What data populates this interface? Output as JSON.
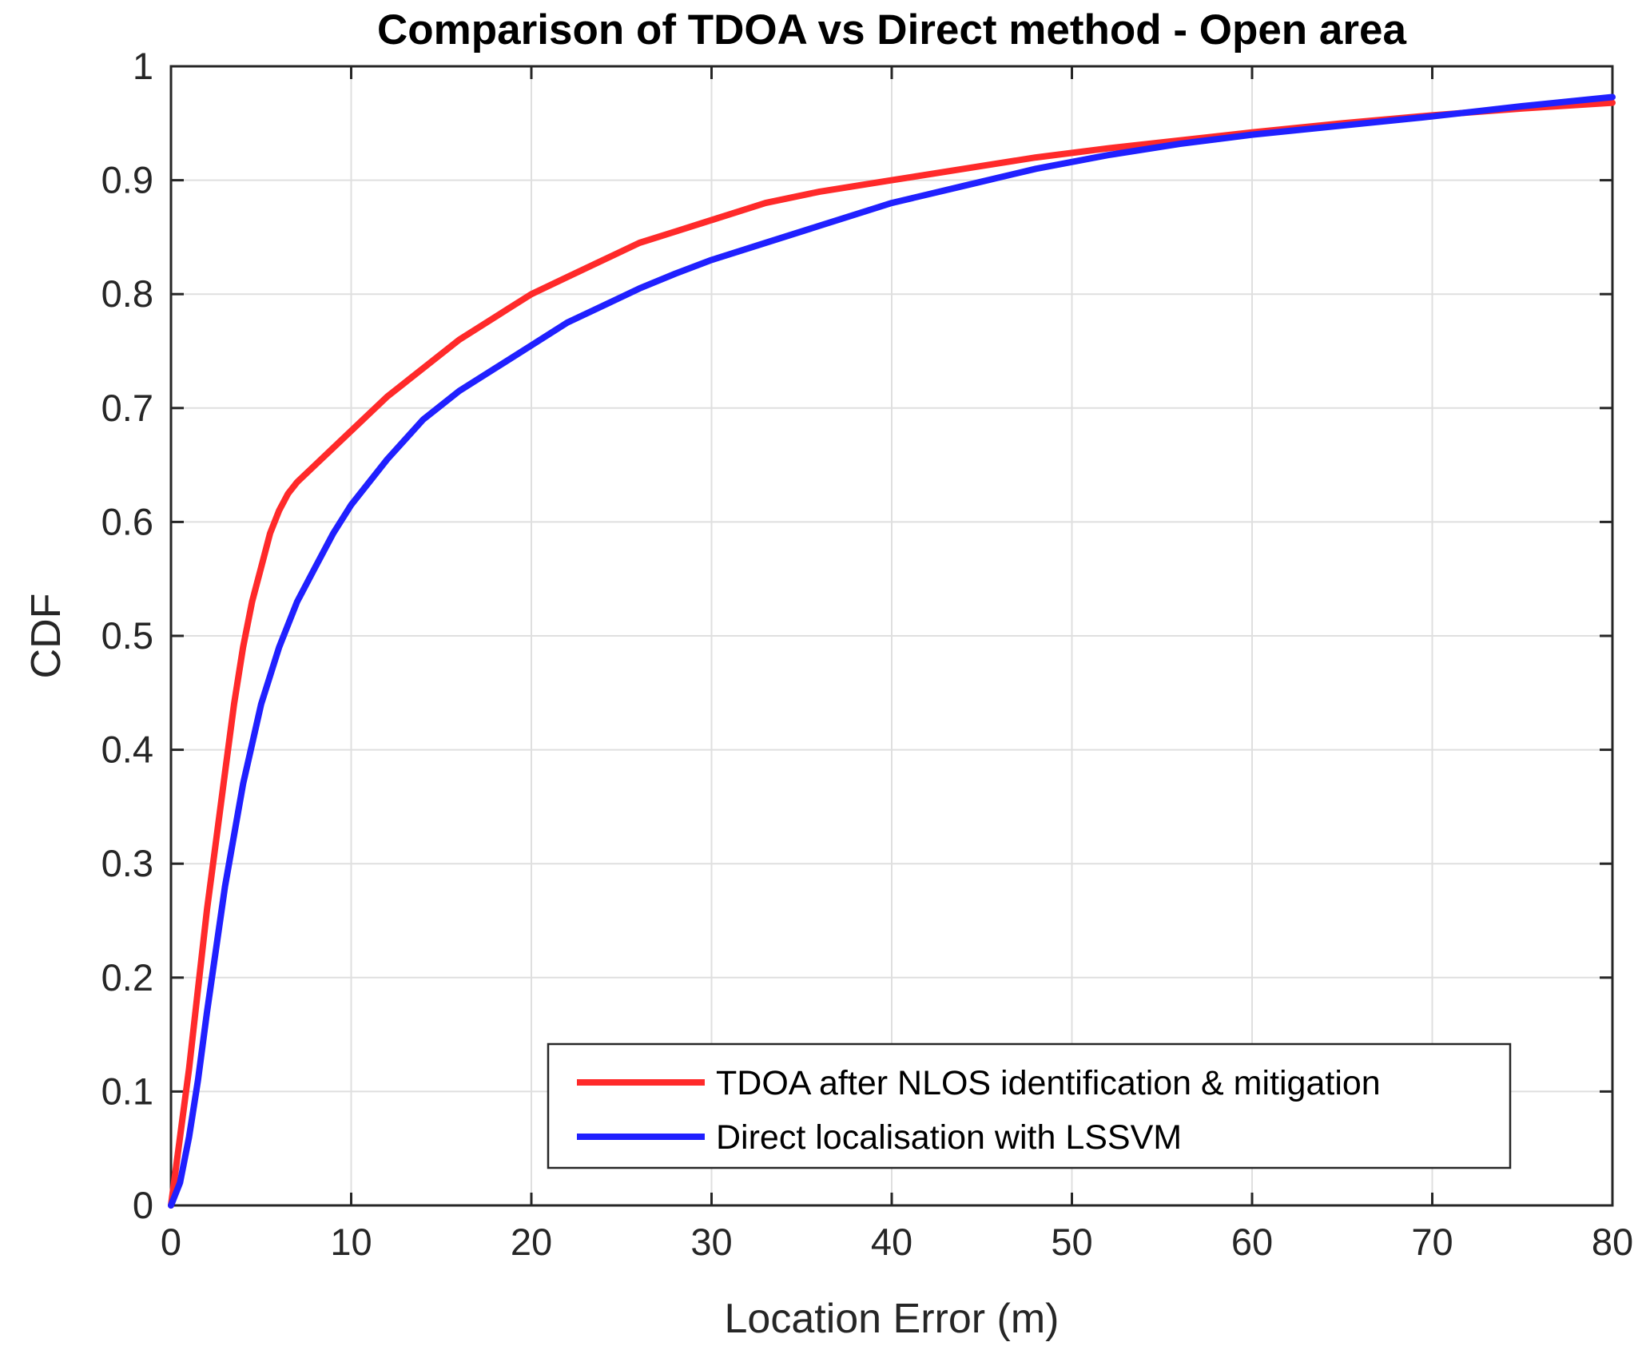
{
  "chart_data": {
    "type": "line",
    "title": "Comparison of TDOA vs Direct method - Open area",
    "xlabel": "Location Error (m)",
    "ylabel": "CDF",
    "xlim": [
      0,
      80
    ],
    "ylim": [
      0,
      1
    ],
    "xticks": [
      0,
      10,
      20,
      30,
      40,
      50,
      60,
      70,
      80
    ],
    "yticks": [
      0,
      0.1,
      0.2,
      0.3,
      0.4,
      0.5,
      0.6,
      0.7,
      0.8,
      0.9,
      1
    ],
    "xtick_labels": [
      "0",
      "10",
      "20",
      "30",
      "40",
      "50",
      "60",
      "70",
      "80"
    ],
    "ytick_labels": [
      "0",
      "0.1",
      "0.2",
      "0.3",
      "0.4",
      "0.5",
      "0.6",
      "0.7",
      "0.8",
      "0.9",
      "1"
    ],
    "grid": true,
    "legend_position": "bottom-right",
    "series": [
      {
        "name": "TDOA after NLOS identification & mitigation",
        "color": "#ff2a2a",
        "x": [
          0,
          0.5,
          1,
          1.5,
          2,
          2.5,
          3,
          3.5,
          4,
          4.5,
          5,
          5.5,
          6,
          6.5,
          7,
          8,
          9,
          10,
          12,
          14,
          16,
          18,
          20,
          22,
          24,
          26,
          28,
          30,
          33,
          36,
          40,
          44,
          48,
          52,
          56,
          60,
          65,
          70,
          75,
          80
        ],
        "y": [
          0,
          0.06,
          0.12,
          0.19,
          0.26,
          0.32,
          0.38,
          0.44,
          0.49,
          0.53,
          0.56,
          0.59,
          0.61,
          0.625,
          0.635,
          0.65,
          0.665,
          0.68,
          0.71,
          0.735,
          0.76,
          0.78,
          0.8,
          0.815,
          0.83,
          0.845,
          0.855,
          0.865,
          0.88,
          0.89,
          0.9,
          0.91,
          0.92,
          0.928,
          0.935,
          0.942,
          0.95,
          0.957,
          0.963,
          0.968
        ]
      },
      {
        "name": "Direct localisation with LSSVM",
        "color": "#2020ff",
        "x": [
          0,
          0.5,
          1,
          1.5,
          2,
          3,
          4,
          5,
          6,
          7,
          8,
          9,
          10,
          12,
          14,
          16,
          18,
          20,
          22,
          24,
          26,
          28,
          30,
          33,
          36,
          40,
          44,
          48,
          52,
          56,
          60,
          65,
          70,
          75,
          80
        ],
        "y": [
          0,
          0.02,
          0.06,
          0.11,
          0.17,
          0.28,
          0.37,
          0.44,
          0.49,
          0.53,
          0.56,
          0.59,
          0.615,
          0.655,
          0.69,
          0.715,
          0.735,
          0.755,
          0.775,
          0.79,
          0.805,
          0.818,
          0.83,
          0.845,
          0.86,
          0.88,
          0.895,
          0.91,
          0.922,
          0.932,
          0.94,
          0.948,
          0.956,
          0.965,
          0.973
        ]
      }
    ]
  }
}
